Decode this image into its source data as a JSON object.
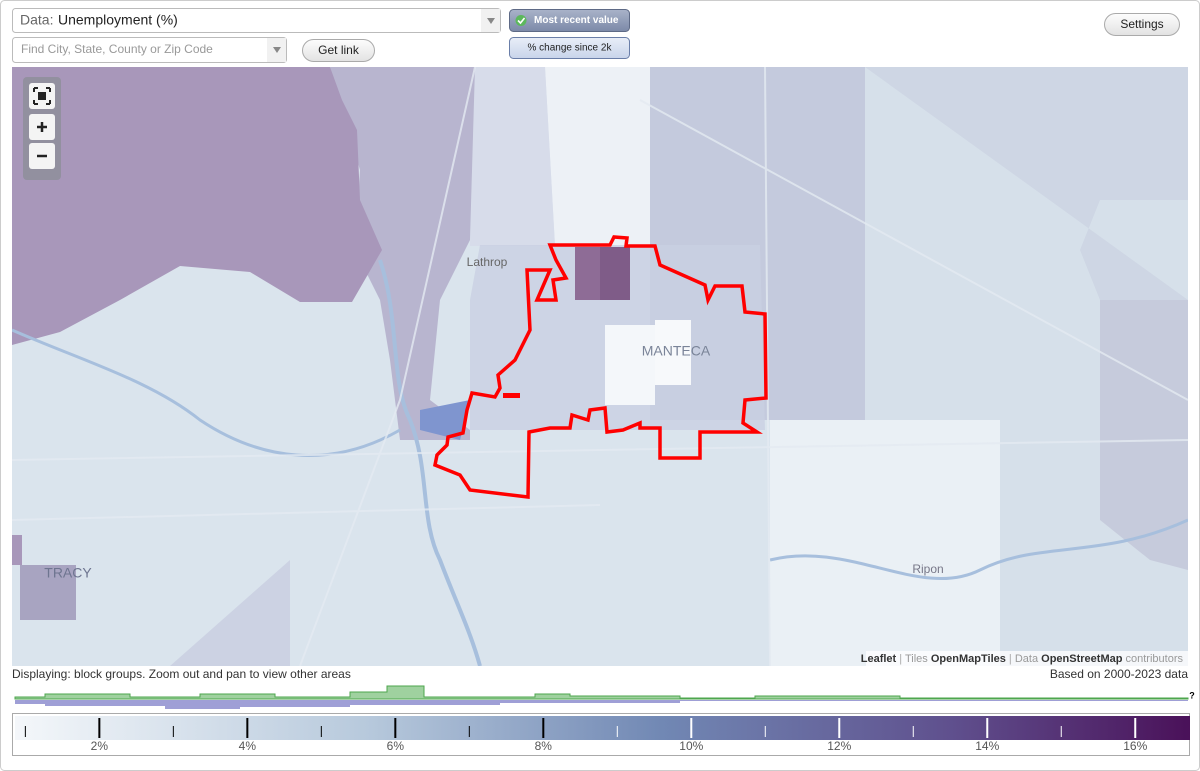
{
  "toolbar": {
    "data_label": "Data:",
    "data_value": "Unemployment (%)",
    "search_placeholder": "Find City, State, County or Zip Code",
    "get_link": "Get link",
    "mode_buttons": [
      "Most recent value",
      "% change since 2k"
    ],
    "settings": "Settings"
  },
  "map": {
    "labels": [
      "Lathrop",
      "MANTECA",
      "TRACY",
      "Ripon"
    ],
    "attribution": [
      "Leaflet",
      "|",
      "Tiles",
      "OpenMapTiles",
      "|",
      "Data",
      "OpenStreetMap",
      "contributors"
    ]
  },
  "footer": {
    "displaying": "Displaying: block groups. Zoom out and pan to view other areas",
    "based_on": "Based on 2000-2023 data",
    "unknown": "?"
  },
  "legend": {
    "range": [
      0.86,
      16.74
    ],
    "ticks": [
      {
        "value": 2,
        "label": "2%"
      },
      {
        "value": 4,
        "label": "4%"
      },
      {
        "value": 6,
        "label": "6%"
      },
      {
        "value": 8,
        "label": "8%"
      },
      {
        "value": 10,
        "label": "10%"
      },
      {
        "value": 12,
        "label": "12%"
      },
      {
        "value": 14,
        "label": "14%"
      },
      {
        "value": 16,
        "label": "16%"
      }
    ],
    "minor_ticks": [
      1,
      3,
      5,
      7,
      9,
      11,
      13,
      15
    ]
  }
}
